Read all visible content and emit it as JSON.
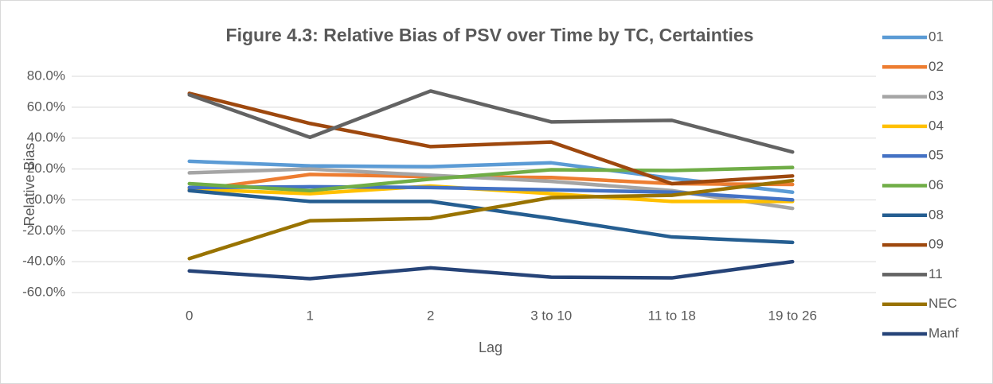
{
  "chart_data": {
    "type": "line",
    "title": "Figure 4.3: Relative Bias of PSV over Time by TC, Certainties",
    "x_label": "Lag",
    "y_label": "Relative Bias",
    "categories": [
      "0",
      "1",
      "2",
      "3 to 10",
      "11 to 18",
      "19 to 26"
    ],
    "ylim": [
      -60,
      80
    ],
    "yticks": [
      {
        "value": -60,
        "label": "-60.0%"
      },
      {
        "value": -40,
        "label": "-40.0%"
      },
      {
        "value": -20,
        "label": "-20.0%"
      },
      {
        "value": 0,
        "label": "0.0%"
      },
      {
        "value": 20,
        "label": "20.0%"
      },
      {
        "value": 40,
        "label": "40.0%"
      },
      {
        "value": 60,
        "label": "60.0%"
      },
      {
        "value": 80,
        "label": "80.0%"
      }
    ],
    "grid": true,
    "legend": "right",
    "series": [
      {
        "name": "01",
        "color": "#5b9bd5",
        "values": [
          25,
          22,
          21.5,
          24,
          14,
          5
        ]
      },
      {
        "name": "02",
        "color": "#ed7d31",
        "values": [
          6,
          16.5,
          15,
          14.5,
          10.5,
          10
        ]
      },
      {
        "name": "03",
        "color": "#a5a5a5",
        "values": [
          17.5,
          20,
          16,
          12,
          6,
          -5.5
        ]
      },
      {
        "name": "04",
        "color": "#ffc000",
        "values": [
          7,
          4,
          9,
          4,
          -1,
          -1
        ]
      },
      {
        "name": "05",
        "color": "#4472c4",
        "values": [
          8,
          8.5,
          8,
          6.5,
          5,
          0
        ]
      },
      {
        "name": "06",
        "color": "#70ad47",
        "values": [
          10.5,
          6,
          13.5,
          19.5,
          19,
          21
        ]
      },
      {
        "name": "08",
        "color": "#255e91",
        "values": [
          6,
          -1,
          -1,
          -12,
          -24,
          -27.5
        ]
      },
      {
        "name": "09",
        "color": "#9e480e",
        "values": [
          69,
          49.5,
          34.5,
          37.5,
          10.5,
          15.5
        ]
      },
      {
        "name": "11",
        "color": "#636363",
        "values": [
          68,
          40.5,
          70.5,
          50.5,
          51.5,
          31
        ]
      },
      {
        "name": "NEC",
        "color": "#997300",
        "values": [
          -38,
          -13.5,
          -12,
          1.5,
          3,
          12.5
        ]
      },
      {
        "name": "Manf",
        "color": "#264478",
        "values": [
          -46,
          -51,
          -44,
          -50,
          -50.5,
          -40
        ]
      }
    ]
  }
}
